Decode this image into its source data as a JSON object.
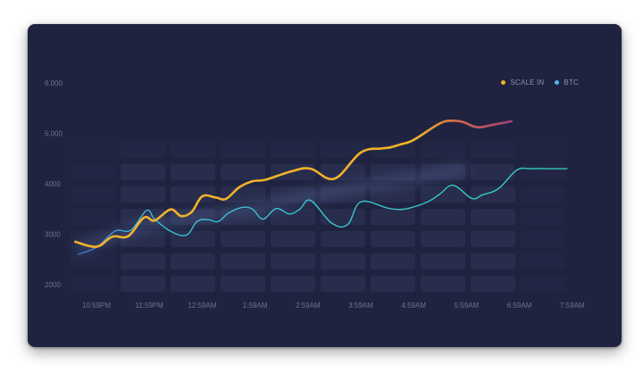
{
  "colors": {
    "background": "#1f2340",
    "scale_in": "#f1b22a",
    "scale_in_end": "#b8486a",
    "btc": "#3fd3d3",
    "btc_start": "#3f6fd8",
    "tick_text": "#6d7294",
    "legend_text": "#8a8fb0"
  },
  "legend": {
    "position": "top-right",
    "items": [
      {
        "label": "SCALE IN",
        "color": "#f1b22a"
      },
      {
        "label": "BTC",
        "color": "#4fb7f0"
      }
    ]
  },
  "chart_data": {
    "type": "line",
    "title": "",
    "xlabel": "",
    "ylabel": "",
    "grid": false,
    "legend": "top-right",
    "ylim": [
      1800,
      6300
    ],
    "yticks": [
      "6.000",
      "5.000",
      "4000",
      "3000",
      "2000"
    ],
    "ytick_values": [
      6000,
      5000,
      4000,
      3000,
      2000
    ],
    "xticks": [
      "10:59PM",
      "11:59PM",
      "12:59AM",
      "1:59AM",
      "2:59AM",
      "3:59AM",
      "4:59AM",
      "5:59AM",
      "6:59AM",
      "7:59AM"
    ],
    "xlim": [
      -0.4,
      9.2
    ],
    "series": [
      {
        "name": "SCALE IN",
        "x": [
          -0.4,
          0,
          0.3,
          0.6,
          0.9,
          1.1,
          1.4,
          1.6,
          1.8,
          2.0,
          2.25,
          2.45,
          2.7,
          2.95,
          3.2,
          3.7,
          4.05,
          4.5,
          5.0,
          5.4,
          5.55,
          5.75,
          6.0,
          6.5,
          6.75,
          6.95,
          7.1,
          7.25,
          7.45,
          7.65,
          7.85
        ],
        "values": [
          2850,
          2750,
          2950,
          2960,
          3330,
          3270,
          3490,
          3360,
          3440,
          3750,
          3730,
          3700,
          3930,
          4050,
          4080,
          4250,
          4300,
          4100,
          4620,
          4700,
          4720,
          4780,
          4870,
          5200,
          5250,
          5220,
          5150,
          5120,
          5160,
          5200,
          5240
        ]
      },
      {
        "name": "BTC",
        "x": [
          -0.35,
          0,
          0.35,
          0.65,
          0.95,
          1.1,
          1.4,
          1.7,
          1.9,
          2.1,
          2.3,
          2.5,
          2.75,
          2.95,
          3.15,
          3.4,
          3.65,
          3.85,
          4.05,
          4.45,
          4.75,
          5.0,
          5.5,
          5.75,
          6.0,
          6.3,
          6.5,
          6.75,
          7.1,
          7.3,
          7.6,
          7.95,
          8.2,
          8.55,
          8.9
        ],
        "values": [
          2600,
          2740,
          3060,
          3080,
          3470,
          3300,
          3060,
          2980,
          3250,
          3290,
          3250,
          3420,
          3530,
          3500,
          3300,
          3510,
          3400,
          3500,
          3670,
          3220,
          3190,
          3640,
          3520,
          3490,
          3540,
          3660,
          3800,
          3970,
          3710,
          3780,
          3900,
          4270,
          4300,
          4300,
          4300
        ]
      }
    ]
  }
}
